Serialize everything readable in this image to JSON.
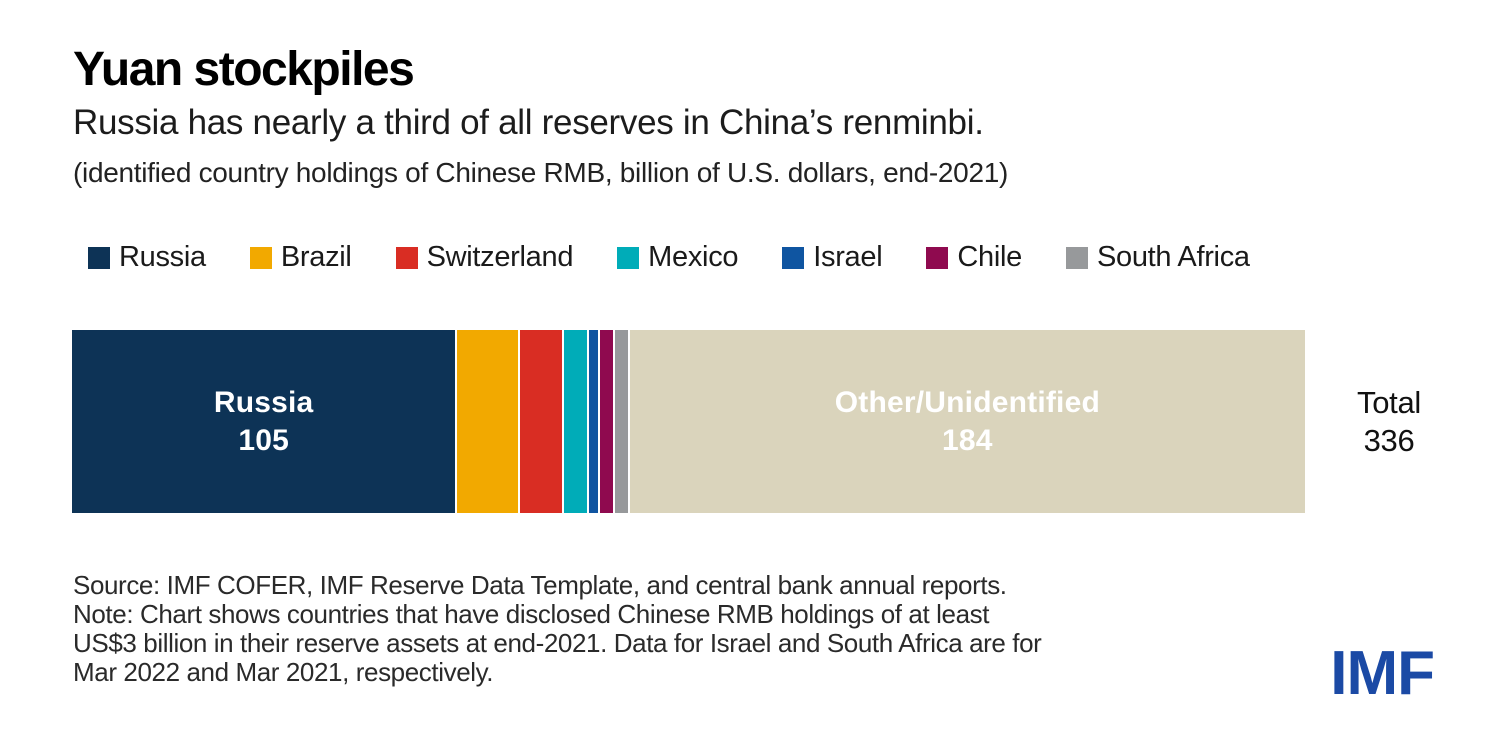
{
  "header": {
    "title": "Yuan stockpiles",
    "subtitle": "Russia has nearly a third of all reserves in China’s renminbi.",
    "unit_note": "(identified country holdings of Chinese RMB, billion of U.S. dollars, end-2021)"
  },
  "chart_data": {
    "type": "bar",
    "subtype": "horizontal-stacked",
    "title": "Yuan stockpiles",
    "subtitle": "Russia has nearly a third of all reserves in China’s renminbi.",
    "unit": "billion of U.S. dollars, end-2021",
    "legend_position": "top",
    "total_label": "Total",
    "total": 336,
    "categories": [
      "Russia",
      "Brazil",
      "Switzerland",
      "Mexico",
      "Israel",
      "Chile",
      "South Africa",
      "Other/Unidentified"
    ],
    "segments": [
      {
        "name": "Russia",
        "value": 105,
        "color": "#0D3356",
        "show_label": true
      },
      {
        "name": "Brazil",
        "value": 17,
        "color": "#F2A900",
        "show_label": false
      },
      {
        "name": "Switzerland",
        "value": 12,
        "color": "#D92D23",
        "show_label": false
      },
      {
        "name": "Mexico",
        "value": 7,
        "color": "#00ACB8",
        "show_label": false
      },
      {
        "name": "Israel",
        "value": 3,
        "color": "#0F55A1",
        "show_label": false
      },
      {
        "name": "Chile",
        "value": 4,
        "color": "#8F0A4F",
        "show_label": false
      },
      {
        "name": "South Africa",
        "value": 4,
        "color": "#97999B",
        "show_label": false
      },
      {
        "name": "Other/Unidentified",
        "value": 184,
        "color": "#DAD4BC",
        "show_label": true
      }
    ],
    "legend": [
      {
        "label": "Russia",
        "color": "#0D3356"
      },
      {
        "label": "Brazil",
        "color": "#F2A900"
      },
      {
        "label": "Switzerland",
        "color": "#D92D23"
      },
      {
        "label": "Mexico",
        "color": "#00ACB8"
      },
      {
        "label": "Israel",
        "color": "#0F55A1"
      },
      {
        "label": "Chile",
        "color": "#8F0A4F"
      },
      {
        "label": "South Africa",
        "color": "#97999B"
      }
    ]
  },
  "footer": {
    "lines": [
      "Source: IMF COFER, IMF Reserve Data Template, and central bank annual reports.",
      "Note: Chart shows countries that have disclosed Chinese RMB holdings of at least",
      "US$3 billion in their reserve assets at end-2021. Data for Israel and South Africa are for",
      "Mar 2022 and Mar 2021, respectively."
    ]
  },
  "logo": {
    "text": "IMF",
    "color": "#1B4AA5"
  }
}
